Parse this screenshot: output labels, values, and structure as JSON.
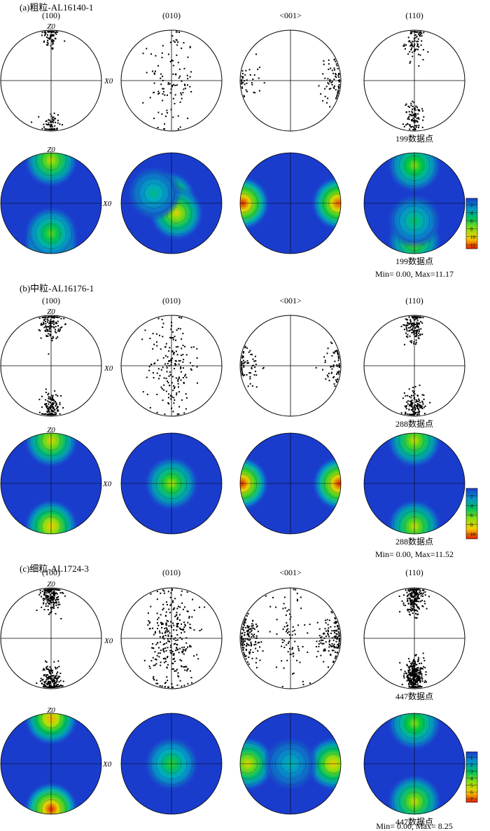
{
  "sections": [
    {
      "id": "a",
      "title": "(a)粗粒-AL16140-1",
      "data_points": 199,
      "count_label": "199数据点",
      "minmax_label": "Min= 0.00, Max=11.17",
      "legend_ticks": [
        "2",
        "4",
        "6",
        "8",
        "10",
        "12"
      ],
      "label_z": "Z0",
      "label_x": "X0",
      "planes": [
        {
          "label": "(100)",
          "points": [
            [
              0.0,
              0.9,
              70
            ],
            [
              0.0,
              -0.9,
              70
            ]
          ],
          "density": [
            [
              0.0,
              0.85,
              0.7
            ],
            [
              0.0,
              -0.82,
              1.0
            ],
            [
              0.0,
              -0.6,
              0.55
            ]
          ]
        },
        {
          "label": "(010)",
          "points": [
            [
              0.0,
              0.0,
              110
            ]
          ],
          "density": [
            [
              -0.05,
              0.1,
              0.8
            ],
            [
              0.1,
              -0.2,
              0.75
            ],
            [
              -0.35,
              0.2,
              0.35
            ]
          ]
        },
        {
          "label": "<001>",
          "points": [
            [
              -0.9,
              0.0,
              40
            ],
            [
              0.9,
              0.0,
              75
            ]
          ],
          "density": [
            [
              -0.95,
              0.0,
              1.0
            ],
            [
              0.95,
              0.0,
              0.95
            ]
          ]
        },
        {
          "label": "(110)",
          "points": [
            [
              0.0,
              0.75,
              80
            ],
            [
              0.0,
              -0.75,
              90
            ]
          ],
          "density": [
            [
              0.0,
              0.75,
              0.6
            ],
            [
              0.0,
              -0.75,
              0.65
            ],
            [
              0.0,
              -0.35,
              0.4
            ]
          ]
        }
      ]
    },
    {
      "id": "b",
      "title": "(b)中粒-AL16176-1",
      "data_points": 288,
      "count_label": "288数据点",
      "minmax_label": "Min= 0.00, Max=11.52",
      "legend_ticks": [
        "2",
        "4",
        "6",
        "8",
        "10"
      ],
      "label_z": "Z0",
      "label_x": "X0",
      "planes": [
        {
          "label": "(100)",
          "points": [
            [
              0.0,
              0.85,
              120
            ],
            [
              0.0,
              -0.85,
              120
            ]
          ],
          "density": [
            [
              0.0,
              0.85,
              0.75
            ],
            [
              0.0,
              -0.85,
              0.8
            ]
          ]
        },
        {
          "label": "(010)",
          "points": [
            [
              0.0,
              0.0,
              180
            ]
          ],
          "density": [
            [
              0.0,
              0.0,
              0.65
            ]
          ]
        },
        {
          "label": "<001>",
          "points": [
            [
              -0.9,
              0.0,
              70
            ],
            [
              0.9,
              0.0,
              60
            ]
          ],
          "density": [
            [
              -0.97,
              0.0,
              1.0
            ],
            [
              0.97,
              0.0,
              1.0
            ]
          ]
        },
        {
          "label": "(110)",
          "points": [
            [
              0.0,
              0.8,
              140
            ],
            [
              0.0,
              -0.8,
              140
            ]
          ],
          "density": [
            [
              0.0,
              0.85,
              0.7
            ],
            [
              0.0,
              -0.85,
              0.7
            ]
          ]
        }
      ]
    },
    {
      "id": "c",
      "title": "(c)细粒-AL1724-3",
      "data_points": 447,
      "count_label": "447数据点",
      "minmax_label": "Min= 0.00, Max= 8.25",
      "legend_ticks": [
        "1",
        "2",
        "3",
        "4",
        "5",
        "6",
        "7"
      ],
      "label_z": "Z0",
      "label_x": "X0",
      "planes": [
        {
          "label": "(100)",
          "points": [
            [
              0.0,
              0.85,
              200
            ],
            [
              0.0,
              -0.85,
              200
            ]
          ],
          "density": [
            [
              0.0,
              0.9,
              0.85
            ],
            [
              0.0,
              -0.9,
              1.0
            ]
          ]
        },
        {
          "label": "(010)",
          "points": [
            [
              0.0,
              0.0,
              300
            ]
          ],
          "density": [
            [
              0.0,
              0.0,
              0.5
            ]
          ]
        },
        {
          "label": "<001>",
          "points": [
            [
              -0.85,
              0.0,
              140
            ],
            [
              0.85,
              0.0,
              140
            ],
            [
              0.0,
              0.0,
              80
            ]
          ],
          "density": [
            [
              -0.85,
              0.0,
              0.75
            ],
            [
              0.85,
              0.0,
              0.8
            ],
            [
              0.0,
              0.0,
              0.3
            ]
          ]
        },
        {
          "label": "(110)",
          "points": [
            [
              0.0,
              0.8,
              200
            ],
            [
              0.0,
              -0.75,
              300
            ]
          ],
          "density": [
            [
              0.0,
              0.8,
              0.6
            ],
            [
              0.0,
              -0.75,
              0.7
            ]
          ]
        }
      ]
    }
  ]
}
